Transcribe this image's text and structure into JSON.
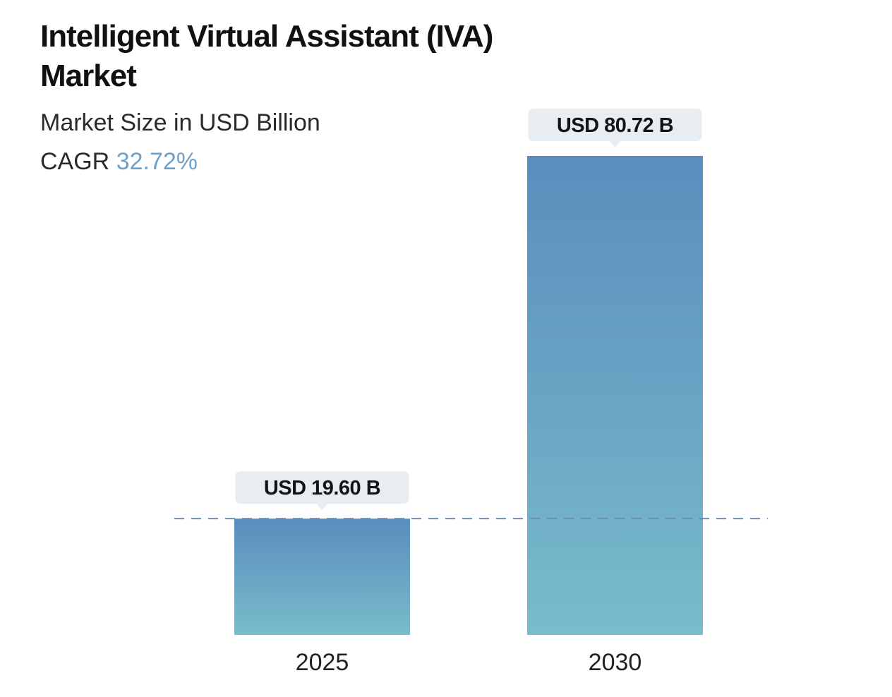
{
  "header": {
    "title": "Intelligent Virtual Assistant (IVA) Market",
    "subtitle": "Market Size in USD Billion",
    "cagr_label": "CAGR",
    "cagr_value": "32.72%"
  },
  "colors": {
    "bar_top": "#5a8dbd",
    "bar_bottom": "#79bccb",
    "callout_bg": "#e8edf1",
    "reference_line": "#6a8fb3",
    "cagr_accent": "#6fa0c8"
  },
  "chart_data": {
    "type": "bar",
    "title": "Intelligent Virtual Assistant (IVA) Market",
    "subtitle": "Market Size in USD Billion",
    "categories": [
      "2025",
      "2030"
    ],
    "values": [
      19.6,
      80.72
    ],
    "data_labels": [
      "USD 19.60 B",
      "USD 80.72 B"
    ],
    "unit": "USD Billion",
    "xlabel": "",
    "ylabel": "",
    "ylim": [
      0,
      80.72
    ],
    "grid": false,
    "reference_line_at": 19.6,
    "cagr": "32.72%"
  }
}
